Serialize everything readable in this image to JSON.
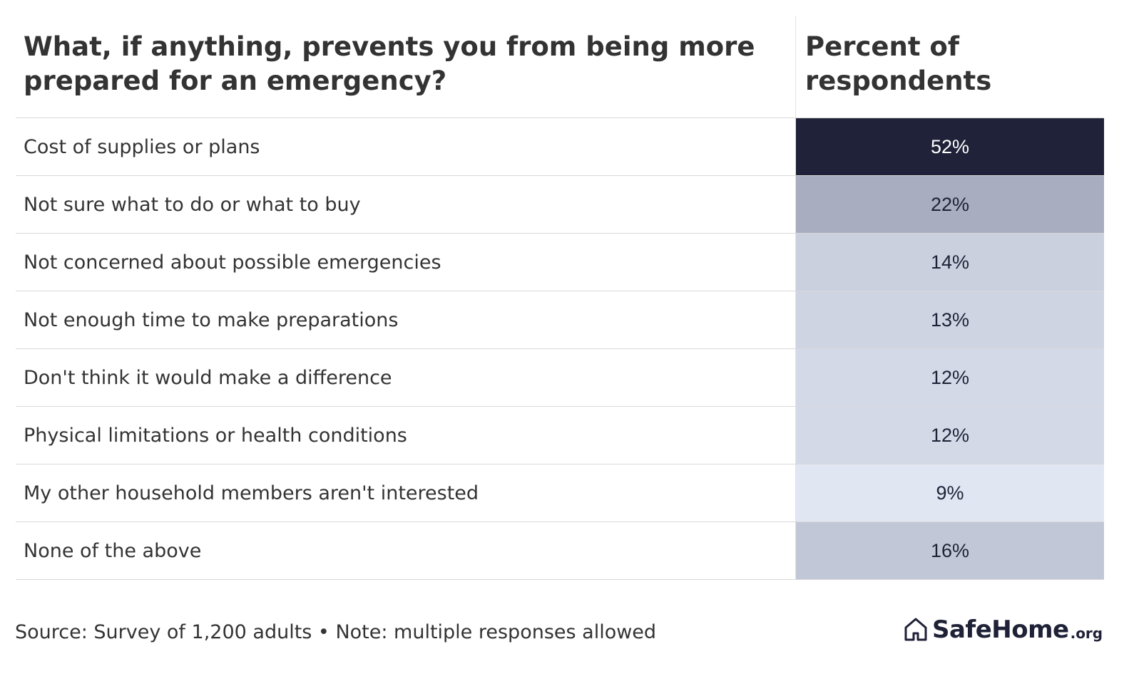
{
  "chart_data": {
    "type": "table",
    "title": "What, if anything, prevents you from being more prepared for an emergency?",
    "column_headers": {
      "question": "What, if anything, prevents you from being more prepared for an emergency?",
      "percent": "Percent of respondents"
    },
    "rows": [
      {
        "label": "Cost of supplies or plans",
        "value": 52,
        "display": "52%"
      },
      {
        "label": "Not sure what to do or what to buy",
        "value": 22,
        "display": "22%"
      },
      {
        "label": "Not concerned about possible emergencies",
        "value": 14,
        "display": "14%"
      },
      {
        "label": "Not enough time to make preparations",
        "value": 13,
        "display": "13%"
      },
      {
        "label": "Don't think it would make a difference",
        "value": 12,
        "display": "12%"
      },
      {
        "label": "Physical limitations or health conditions",
        "value": 12,
        "display": "12%"
      },
      {
        "label": "My other household members aren't interested",
        "value": 9,
        "display": "9%"
      },
      {
        "label": "None of the above",
        "value": 16,
        "display": "16%"
      }
    ],
    "color_scale": {
      "high": "#1f2238",
      "mid": "#a8adbf",
      "low": "#e1e6f3"
    }
  },
  "footer": {
    "source": "Source: Survey of 1,200 adults • Note: multiple responses allowed"
  },
  "logo": {
    "icon": "house-icon",
    "name": "SafeHome",
    "suffix": ".org",
    "color": "#1f2237"
  }
}
